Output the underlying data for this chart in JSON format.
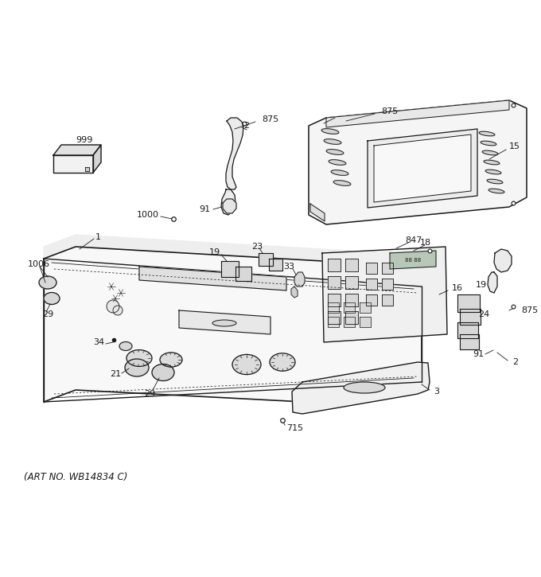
{
  "art_no": "(ART NO. WB14834 C)",
  "bg_color": "#ffffff",
  "lc": "#1a1a1a",
  "figsize": [
    6.8,
    7.25
  ],
  "dpi": 100,
  "xlim": [
    0,
    680
  ],
  "ylim": [
    0,
    725
  ]
}
